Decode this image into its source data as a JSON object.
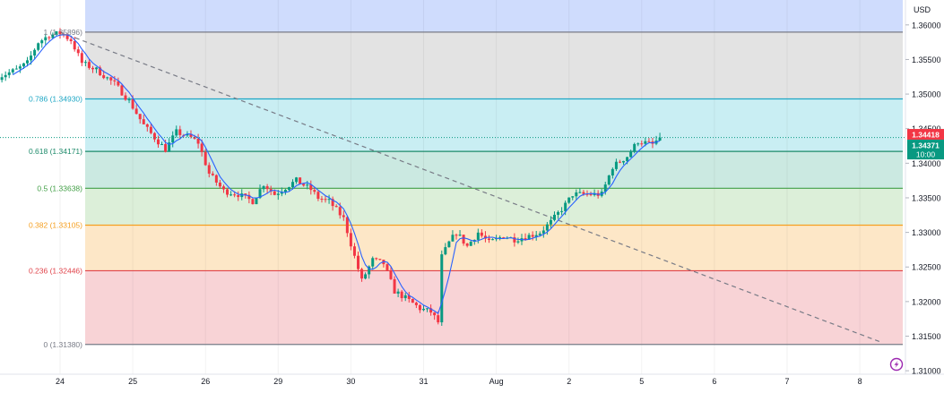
{
  "currency": "USD",
  "chart_data": {
    "type": "candlestick",
    "instrument_currency": "USD",
    "y_axis": {
      "min": 1.3095,
      "max": 1.3636,
      "ticks": [
        1.36,
        1.355,
        1.35,
        1.345,
        1.34,
        1.335,
        1.33,
        1.325,
        1.32,
        1.315,
        1.31
      ],
      "tick_labels": [
        "1.36000",
        "1.35500",
        "1.35000",
        "1.34500",
        "1.34000",
        "1.33500",
        "1.33000",
        "1.32500",
        "1.32000",
        "1.31500",
        "1.31000"
      ]
    },
    "x_axis": {
      "labels": [
        "24",
        "25",
        "26",
        "29",
        "30",
        "31",
        "Aug",
        "2",
        "5",
        "6",
        "7",
        "8"
      ],
      "positions": [
        0,
        1,
        2,
        3,
        4,
        5,
        6,
        7,
        8,
        9,
        10,
        11
      ]
    },
    "fibonacci_levels": [
      {
        "ratio": "1",
        "value": 1.35896,
        "label": "1 (1.35896)",
        "line_color": "#787b86",
        "fill": "#dcdcdc"
      },
      {
        "ratio": "0.786",
        "value": 1.3493,
        "label": "0.786 (1.34930)",
        "line_color": "#1ea7c5",
        "fill": "#c9eef2"
      },
      {
        "ratio": "0.618",
        "value": 1.34171,
        "label": "0.618 (1.34171)",
        "line_color": "#1d8a6a",
        "fill": "#cbe9e0"
      },
      {
        "ratio": "0.5",
        "value": 1.33638,
        "label": "0.5 (1.33638)",
        "line_color": "#43a047",
        "fill": "#dcefd9"
      },
      {
        "ratio": "0.382",
        "value": 1.33105,
        "label": "0.382 (1.33105)",
        "line_color": "#f59f20",
        "fill": "#fde7c7"
      },
      {
        "ratio": "0.236",
        "value": 1.32446,
        "label": "0.236 (1.32446)",
        "line_color": "#e0434a",
        "fill": "#f8d3d6"
      },
      {
        "ratio": "0",
        "value": 1.3138,
        "label": "0 (1.31380)",
        "line_color": "#787b86",
        "fill": "#ffffff"
      }
    ],
    "price_path": [
      [
        -0.85,
        1.3525
      ],
      [
        -0.6,
        1.3535
      ],
      [
        -0.45,
        1.3545
      ],
      [
        -0.3,
        1.3575
      ],
      [
        -0.15,
        1.3585
      ],
      [
        0.0,
        1.3588
      ],
      [
        0.15,
        1.3578
      ],
      [
        0.3,
        1.3545
      ],
      [
        0.5,
        1.3535
      ],
      [
        0.75,
        1.3515
      ],
      [
        0.95,
        1.349
      ],
      [
        1.15,
        1.3455
      ],
      [
        1.3,
        1.3437
      ],
      [
        1.45,
        1.342
      ],
      [
        1.6,
        1.3445
      ],
      [
        1.8,
        1.3437
      ],
      [
        1.9,
        1.343
      ],
      [
        2.05,
        1.3385
      ],
      [
        2.25,
        1.336
      ],
      [
        2.45,
        1.3355
      ],
      [
        2.65,
        1.3345
      ],
      [
        2.8,
        1.337
      ],
      [
        2.95,
        1.3355
      ],
      [
        3.1,
        1.3365
      ],
      [
        3.25,
        1.3375
      ],
      [
        3.45,
        1.3362
      ],
      [
        3.55,
        1.335
      ],
      [
        3.7,
        1.3345
      ],
      [
        3.9,
        1.332
      ],
      [
        4.05,
        1.3265
      ],
      [
        4.15,
        1.323
      ],
      [
        4.3,
        1.326
      ],
      [
        4.45,
        1.3255
      ],
      [
        4.6,
        1.3215
      ],
      [
        4.75,
        1.3205
      ],
      [
        4.95,
        1.319
      ],
      [
        5.1,
        1.3185
      ],
      [
        5.2,
        1.317
      ],
      [
        5.25,
        1.3265
      ],
      [
        5.35,
        1.3285
      ],
      [
        5.45,
        1.33
      ],
      [
        5.6,
        1.328
      ],
      [
        5.75,
        1.33
      ],
      [
        5.9,
        1.3285
      ],
      [
        6.1,
        1.3295
      ],
      [
        6.25,
        1.329
      ],
      [
        6.45,
        1.3295
      ],
      [
        6.6,
        1.33
      ],
      [
        6.75,
        1.3315
      ],
      [
        6.95,
        1.334
      ],
      [
        7.05,
        1.3355
      ],
      [
        7.25,
        1.3355
      ],
      [
        7.45,
        1.3355
      ],
      [
        7.6,
        1.3395
      ],
      [
        7.8,
        1.341
      ],
      [
        7.95,
        1.3432
      ],
      [
        8.15,
        1.3427
      ],
      [
        8.25,
        1.3437
      ]
    ],
    "ma_smoothing": 5,
    "trendline": {
      "from": [
        0.0,
        1.35896
      ],
      "to": [
        11.3,
        1.3141
      ],
      "style": "dashed",
      "color": "#787b86"
    },
    "last_price": {
      "value": 1.34418,
      "label": "1.34418",
      "color": "#f23645"
    },
    "current_price": {
      "value": 1.34371,
      "label": "1.34371",
      "countdown": "10:00",
      "color": "#089981"
    },
    "colors": {
      "up": "#089981",
      "down": "#f23645",
      "ma": "#2962ff"
    },
    "bands": [
      {
        "from": 1.3636,
        "to": 1.35896,
        "color": "#cfdcfd"
      },
      {
        "from": 1.35896,
        "to": 1.3493,
        "color": "#e3e3e3"
      },
      {
        "from": 1.3493,
        "to": 1.34171,
        "color": "#c9eef3"
      },
      {
        "from": 1.34171,
        "to": 1.33638,
        "color": "#cbe9e1"
      },
      {
        "from": 1.33638,
        "to": 1.33105,
        "color": "#dcefd9"
      },
      {
        "from": 1.33105,
        "to": 1.32446,
        "color": "#fde7c7"
      },
      {
        "from": 1.32446,
        "to": 1.3138,
        "color": "#f8d3d6"
      }
    ]
  }
}
